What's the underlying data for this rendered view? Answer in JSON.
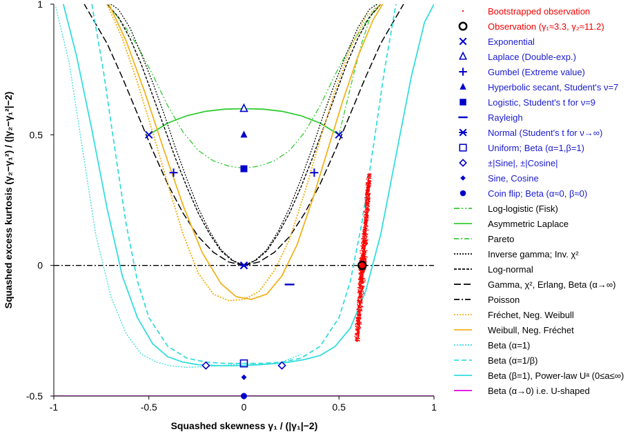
{
  "chart_data": {
    "type": "scatter",
    "title": "",
    "xlabel": "Squashed skewness  γ₁ / (|γ₁|−2)",
    "ylabel": "Squashed excess kurtosis  (γ₂−γ₁²) / (|γ₂−γ₁²|−2)",
    "xlim": [
      -1,
      1
    ],
    "ylim": [
      -0.5,
      1
    ],
    "x_ticks": [
      -1,
      -0.5,
      0,
      0.5,
      1
    ],
    "x_tick_labels": [
      "-1",
      "-0.5",
      "0",
      "0.5",
      "1"
    ],
    "y_ticks": [
      -0.5,
      0,
      0.5,
      1
    ],
    "y_tick_labels": [
      "-0.5",
      "0",
      "0.5",
      "1"
    ],
    "grid": false,
    "legend_position": "right",
    "colors": {
      "red": "#ff0000",
      "blue": "#0000cc",
      "green": "#33cc33",
      "black": "#000000",
      "orange": "#f2b21b",
      "cyan": "#33dddd",
      "magenta": "#e000e0",
      "legend_red_text": "#ee0000",
      "legend_blue_text": "#1a1acc"
    },
    "legend": [
      {
        "label": "Bootstrapped observation",
        "marker": "dot",
        "color": "#ff0000",
        "text_color": "#ee0000"
      },
      {
        "label": "Observation (γ₁≈3.3, γ₂≈11.2)",
        "marker": "ring",
        "color": "#000000",
        "text_color": "#ee0000"
      },
      {
        "label": "Exponential",
        "marker": "x",
        "color": "#0000cc",
        "text_color": "#1a1acc"
      },
      {
        "label": "Laplace (Double-exp.)",
        "marker": "triangle-open",
        "color": "#0000cc",
        "text_color": "#1a1acc"
      },
      {
        "label": "Gumbel (Extreme value)",
        "marker": "plus",
        "color": "#0000cc",
        "text_color": "#1a1acc"
      },
      {
        "label": "Hyperbolic secant, Student's ν=7",
        "marker": "triangle",
        "color": "#0000cc",
        "text_color": "#1a1acc"
      },
      {
        "label": "Logistic, Student's t for ν=9",
        "marker": "square",
        "color": "#0000cc",
        "text_color": "#1a1acc"
      },
      {
        "label": "Rayleigh",
        "marker": "dash",
        "color": "#0000cc",
        "text_color": "#1a1acc"
      },
      {
        "label": "Normal (Student's t for ν→∞)",
        "marker": "asterisk",
        "color": "#0000cc",
        "text_color": "#1a1acc"
      },
      {
        "label": "Uniform; Beta (α=1,β=1)",
        "marker": "square-open",
        "color": "#0000cc",
        "text_color": "#1a1acc"
      },
      {
        "label": "±|Sine|, ±|Cosine|",
        "marker": "diamond-open",
        "color": "#0000cc",
        "text_color": "#1a1acc"
      },
      {
        "label": "Sine, Cosine",
        "marker": "diamond",
        "color": "#0000cc",
        "text_color": "#1a1acc"
      },
      {
        "label": "Coin flip; Beta (α≈0, β≈0)",
        "marker": "circle",
        "color": "#0000cc",
        "text_color": "#1a1acc"
      },
      {
        "label": "Log-logistic (Fisk)",
        "marker": "line",
        "color": "#33cc33",
        "dash": "8 3 2 3 2 3"
      },
      {
        "label": "Asymmetric Laplace",
        "marker": "line",
        "color": "#33cc33",
        "dash": ""
      },
      {
        "label": "Pareto",
        "marker": "line",
        "color": "#33cc33",
        "dash": "7 3 2 3"
      },
      {
        "label": "Inverse gamma; Inv. χ²",
        "marker": "line",
        "color": "#000000",
        "dash": "2 2"
      },
      {
        "label": "Log-normal",
        "marker": "line",
        "color": "#000000",
        "dash": "4 2"
      },
      {
        "label": "Gamma, χ², Erlang, Beta (α→∞)",
        "marker": "line",
        "color": "#000000",
        "dash": "10 4"
      },
      {
        "label": "Poisson",
        "marker": "line",
        "color": "#000000",
        "dash": "8 3 2 3"
      },
      {
        "label": "Fréchet, Neg. Weibull",
        "marker": "line",
        "color": "#f2b21b",
        "dash": "2 2"
      },
      {
        "label": "Weibull, Neg. Fréchet",
        "marker": "line",
        "color": "#f2b21b",
        "dash": ""
      },
      {
        "label": "Beta (α=1)",
        "marker": "line",
        "color": "#33dddd",
        "dash": "2 2"
      },
      {
        "label": "Beta (α=1/β)",
        "marker": "line",
        "color": "#33dddd",
        "dash": "7 4"
      },
      {
        "label": "Beta (β=1), Power-law Uᵃ (0≤a≤∞)",
        "marker": "line",
        "color": "#33dddd",
        "dash": ""
      },
      {
        "label": "Beta (α→0) i.e. U-shaped",
        "marker": "line",
        "color": "#e000e0",
        "dash": ""
      }
    ],
    "series": [
      {
        "name": "Log-logistic (Fisk)",
        "style": "line",
        "color": "#33cc33",
        "dash": "8 3 2 3 2 3",
        "width": 1.3,
        "x": [
          -0.72,
          -0.64,
          -0.56,
          -0.48,
          -0.4,
          -0.32,
          -0.24,
          -0.16,
          -0.08,
          0,
          0.08,
          0.16,
          0.24,
          0.32,
          0.4,
          0.48,
          0.56,
          0.64,
          0.72
        ],
        "y": [
          1.0,
          0.93,
          0.84,
          0.73,
          0.61,
          0.51,
          0.44,
          0.4,
          0.38,
          0.372,
          0.38,
          0.4,
          0.44,
          0.51,
          0.61,
          0.73,
          0.84,
          0.93,
          1.0
        ]
      },
      {
        "name": "Asymmetric Laplace",
        "style": "line",
        "color": "#33cc33",
        "dash": "",
        "width": 1.8,
        "x": [
          -0.5,
          -0.4,
          -0.3,
          -0.2,
          -0.1,
          0,
          0.1,
          0.2,
          0.3,
          0.4,
          0.5
        ],
        "y": [
          0.5,
          0.545,
          0.573,
          0.59,
          0.598,
          0.6,
          0.598,
          0.59,
          0.573,
          0.545,
          0.5
        ]
      },
      {
        "name": "Pareto",
        "style": "line",
        "color": "#33cc33",
        "dash": "7 3 2 3",
        "width": 1.3,
        "x": [
          0.5,
          0.54,
          0.58,
          0.62,
          0.66,
          0.7
        ],
        "y": [
          0.5,
          0.62,
          0.74,
          0.85,
          0.94,
          1.0
        ]
      },
      {
        "name": "Inverse gamma; Inv. χ²",
        "style": "line",
        "color": "#000000",
        "dash": "2 2",
        "width": 1.3,
        "x": [
          0,
          0.06,
          0.12,
          0.18,
          0.24,
          0.3,
          0.36,
          0.42,
          0.48,
          0.54,
          0.6,
          0.66,
          0.7
        ],
        "y": [
          0,
          0.02,
          0.06,
          0.13,
          0.22,
          0.33,
          0.45,
          0.58,
          0.7,
          0.81,
          0.91,
          0.98,
          1.0
        ]
      },
      {
        "name": "Inverse gamma mirror",
        "style": "line",
        "color": "#000000",
        "dash": "2 2",
        "width": 1.3,
        "x": [
          0,
          -0.06,
          -0.12,
          -0.18,
          -0.24,
          -0.3,
          -0.36,
          -0.42,
          -0.48,
          -0.54,
          -0.6,
          -0.66,
          -0.7
        ],
        "y": [
          0,
          0.02,
          0.06,
          0.13,
          0.22,
          0.33,
          0.45,
          0.58,
          0.7,
          0.81,
          0.91,
          0.98,
          1.0
        ]
      },
      {
        "name": "Log-normal",
        "style": "line",
        "color": "#000000",
        "dash": "4 2",
        "width": 1.4,
        "x": [
          0,
          0.06,
          0.12,
          0.18,
          0.24,
          0.3,
          0.36,
          0.42,
          0.48,
          0.54,
          0.6,
          0.66,
          0.72
        ],
        "y": [
          0,
          0.018,
          0.055,
          0.12,
          0.2,
          0.3,
          0.41,
          0.53,
          0.65,
          0.77,
          0.87,
          0.95,
          1.0
        ]
      },
      {
        "name": "Log-normal mirror",
        "style": "line",
        "color": "#000000",
        "dash": "4 2",
        "width": 1.4,
        "x": [
          0,
          -0.06,
          -0.12,
          -0.18,
          -0.24,
          -0.3,
          -0.36,
          -0.42,
          -0.48,
          -0.54,
          -0.6,
          -0.66,
          -0.72
        ],
        "y": [
          0,
          0.018,
          0.055,
          0.12,
          0.2,
          0.3,
          0.41,
          0.53,
          0.65,
          0.77,
          0.87,
          0.95,
          1.0
        ]
      },
      {
        "name": "Gamma, χ², Erlang, Beta (α→∞)",
        "style": "line",
        "color": "#000000",
        "dash": "10 4",
        "width": 1.5,
        "x": [
          0,
          0.08,
          0.16,
          0.24,
          0.32,
          0.4,
          0.48,
          0.56,
          0.64,
          0.72,
          0.8,
          0.84
        ],
        "y": [
          0,
          0.013,
          0.05,
          0.11,
          0.2,
          0.31,
          0.44,
          0.58,
          0.72,
          0.85,
          0.95,
          1.0
        ]
      },
      {
        "name": "Gamma mirror",
        "style": "line",
        "color": "#000000",
        "dash": "10 4",
        "width": 1.5,
        "x": [
          0,
          -0.08,
          -0.16,
          -0.24,
          -0.32,
          -0.4,
          -0.48,
          -0.56,
          -0.64,
          -0.72,
          -0.8,
          -0.84
        ],
        "y": [
          0,
          0.013,
          0.05,
          0.11,
          0.2,
          0.31,
          0.44,
          0.58,
          0.72,
          0.85,
          0.95,
          1.0
        ]
      },
      {
        "name": "Poisson",
        "style": "line",
        "color": "#000000",
        "dash": "8 3 2 3",
        "width": 1.3,
        "x": [
          -1,
          1
        ],
        "y": [
          0,
          0
        ]
      },
      {
        "name": "Fréchet, Neg. Weibull",
        "style": "line",
        "color": "#f2b21b",
        "dash": "2 2",
        "width": 2,
        "x": [
          -0.72,
          -0.64,
          -0.56,
          -0.48,
          -0.4,
          -0.32,
          -0.24,
          -0.16,
          -0.08,
          0,
          0.08,
          0.16,
          0.24,
          0.32,
          0.4,
          0.48,
          0.56,
          0.64,
          0.72
        ],
        "y": [
          1.0,
          0.87,
          0.7,
          0.51,
          0.31,
          0.12,
          -0.03,
          -0.11,
          -0.135,
          -0.13,
          -0.1,
          -0.02,
          0.1,
          0.28,
          0.48,
          0.67,
          0.83,
          0.95,
          1.0
        ]
      },
      {
        "name": "Weibull, Neg. Fréchet",
        "style": "line",
        "color": "#f2b21b",
        "dash": "",
        "width": 1.8,
        "x": [
          -0.71,
          -0.62,
          -0.52,
          -0.42,
          -0.32,
          -0.22,
          -0.12,
          -0.04,
          0.04,
          0.12,
          0.2,
          0.28,
          0.36,
          0.44,
          0.52,
          0.6,
          0.68,
          0.73
        ],
        "y": [
          1.0,
          0.86,
          0.66,
          0.44,
          0.23,
          0.05,
          -0.07,
          -0.12,
          -0.13,
          -0.11,
          -0.04,
          0.08,
          0.25,
          0.44,
          0.63,
          0.8,
          0.94,
          1.0
        ]
      },
      {
        "name": "Beta (α=1)",
        "style": "line",
        "color": "#33dddd",
        "dash": "2 2",
        "width": 1.3,
        "x": [
          -0.99,
          -0.92,
          -0.85,
          -0.78,
          -0.7,
          -0.62,
          -0.54,
          -0.46,
          -0.38,
          -0.3,
          -0.22,
          -0.14,
          -0.06,
          0,
          0.1,
          0.2,
          0.3
        ],
        "y": [
          0.99,
          0.78,
          0.45,
          0.12,
          -0.12,
          -0.26,
          -0.34,
          -0.37,
          -0.385,
          -0.39,
          -0.388,
          -0.385,
          -0.38,
          -0.375,
          -0.38,
          -0.37,
          -0.34
        ]
      },
      {
        "name": "Beta (α=1/β)",
        "style": "line",
        "color": "#33dddd",
        "dash": "7 4",
        "width": 1.8,
        "x": [
          -0.8,
          -0.74,
          -0.68,
          -0.62,
          -0.56,
          -0.5,
          -0.4,
          -0.3,
          -0.2,
          -0.1,
          0,
          0.1,
          0.2,
          0.3,
          0.4,
          0.5,
          0.56,
          0.62,
          0.68,
          0.74,
          0.8
        ],
        "y": [
          1.0,
          0.75,
          0.45,
          0.16,
          -0.06,
          -0.2,
          -0.31,
          -0.355,
          -0.37,
          -0.375,
          -0.375,
          -0.375,
          -0.37,
          -0.355,
          -0.31,
          -0.2,
          -0.06,
          0.16,
          0.45,
          0.75,
          1.0
        ]
      },
      {
        "name": "Beta (β=1), Power-law Uᵃ (0≤a≤∞)",
        "style": "line",
        "color": "#33dddd",
        "dash": "",
        "width": 1.8,
        "x": [
          -0.95,
          -0.88,
          -0.8,
          -0.72,
          -0.64,
          -0.56,
          -0.48,
          -0.4,
          -0.32,
          -0.24,
          -0.16,
          -0.08,
          0,
          0.08,
          0.16,
          0.24,
          0.32,
          0.4,
          0.48,
          0.56,
          0.64,
          0.72,
          0.8,
          0.88,
          0.95,
          1.0
        ],
        "y": [
          1.0,
          0.8,
          0.52,
          0.22,
          -0.04,
          -0.2,
          -0.3,
          -0.35,
          -0.37,
          -0.38,
          -0.383,
          -0.384,
          -0.383,
          -0.38,
          -0.376,
          -0.37,
          -0.36,
          -0.345,
          -0.31,
          -0.24,
          -0.1,
          0.12,
          0.42,
          0.72,
          0.93,
          1.0
        ]
      },
      {
        "name": "Beta (α→0) i.e. U-shaped",
        "style": "line",
        "color": "#e000e0",
        "dash": "",
        "width": 1.8,
        "x": [
          -1,
          1
        ],
        "y": [
          -0.5,
          -0.5
        ]
      }
    ],
    "markers": [
      {
        "name": "Exponential",
        "marker": "x",
        "color": "#0000cc",
        "x": 0,
        "y": 0
      },
      {
        "name": "Laplace (Double-exp.)",
        "marker": "triangle-open",
        "color": "#0000cc",
        "x": 0,
        "y": 0.6
      },
      {
        "name": "Gumbel (Extreme value)",
        "marker": "plus",
        "color": "#0000cc",
        "x": -0.37,
        "y": 0.355
      },
      {
        "name": "Gumbel (Extreme value)",
        "marker": "plus",
        "color": "#0000cc",
        "x": 0.37,
        "y": 0.355
      },
      {
        "name": "Hyperbolic secant, Student's ν=7",
        "marker": "triangle",
        "color": "#0000cc",
        "x": 0,
        "y": 0.5
      },
      {
        "name": "Logistic, Student's t for ν=9",
        "marker": "square",
        "color": "#0000cc",
        "x": 0,
        "y": 0.37
      },
      {
        "name": "Rayleigh",
        "marker": "dash",
        "color": "#0000cc",
        "x": 0.24,
        "y": -0.073
      },
      {
        "name": "Normal (Student's t for ν→∞)",
        "marker": "asterisk",
        "color": "#0000cc",
        "x": 0,
        "y": 0
      },
      {
        "name": "Exponential",
        "marker": "x",
        "color": "#0000cc",
        "x": -0.5,
        "y": 0.5
      },
      {
        "name": "Exponential",
        "marker": "x",
        "color": "#0000cc",
        "x": 0.5,
        "y": 0.5
      },
      {
        "name": "Uniform; Beta (α=1,β=1)",
        "marker": "square-open",
        "color": "#0000cc",
        "x": 0,
        "y": -0.375
      },
      {
        "name": "±|Sine|, ±|Cosine|",
        "marker": "diamond-open",
        "color": "#0000cc",
        "x": -0.2,
        "y": -0.383
      },
      {
        "name": "±|Sine|, ±|Cosine|",
        "marker": "diamond-open",
        "color": "#0000cc",
        "x": 0.2,
        "y": -0.383
      },
      {
        "name": "Sine, Cosine",
        "marker": "diamond",
        "color": "#0000cc",
        "x": 0,
        "y": -0.428
      },
      {
        "name": "Coin flip; Beta (α≈0, β≈0)",
        "marker": "circle",
        "color": "#0000cc",
        "x": 0,
        "y": -0.5
      },
      {
        "name": "Observation (γ₁≈3.3, γ₂≈11.2)",
        "marker": "ring",
        "color": "#000000",
        "x": 0.622,
        "y": 0
      }
    ],
    "bootstrap": {
      "name": "Bootstrapped observation",
      "color": "#ff0000",
      "count": 1400,
      "center": [
        0.622,
        0.0
      ],
      "upper": [
        0.66,
        0.35
      ],
      "lower": [
        0.595,
        -0.29
      ]
    }
  }
}
